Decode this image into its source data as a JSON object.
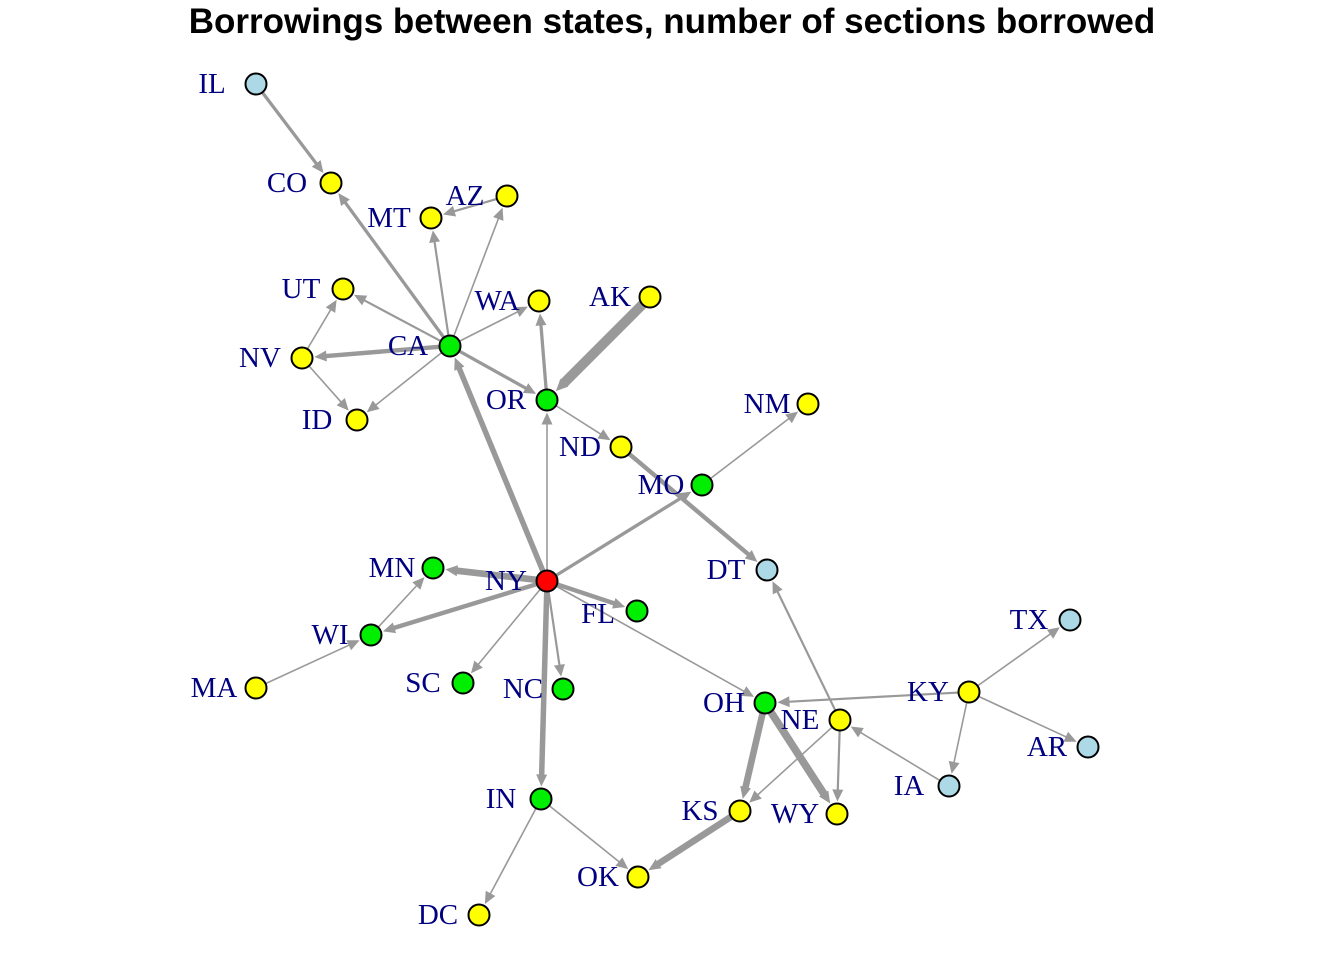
{
  "title": "Borrowings between states, number of sections borrowed",
  "colors": {
    "edge": "#999999",
    "label": "#000080",
    "groups": {
      "hub": "#ff0000",
      "green": "#00ee00",
      "yellow": "#ffff00",
      "blue": "#add8e6"
    }
  },
  "nodes": [
    {
      "id": "IL",
      "label": "IL",
      "group": "blue"
    },
    {
      "id": "CO",
      "label": "CO",
      "group": "yellow"
    },
    {
      "id": "MT",
      "label": "MT",
      "group": "yellow"
    },
    {
      "id": "AZ",
      "label": "AZ",
      "group": "yellow"
    },
    {
      "id": "UT",
      "label": "UT",
      "group": "yellow"
    },
    {
      "id": "WA",
      "label": "WA",
      "group": "yellow"
    },
    {
      "id": "AK",
      "label": "AK",
      "group": "yellow"
    },
    {
      "id": "NV",
      "label": "NV",
      "group": "yellow"
    },
    {
      "id": "CA",
      "label": "CA",
      "group": "green"
    },
    {
      "id": "OR",
      "label": "OR",
      "group": "green"
    },
    {
      "id": "ID",
      "label": "ID",
      "group": "yellow"
    },
    {
      "id": "NM",
      "label": "NM",
      "group": "yellow"
    },
    {
      "id": "ND",
      "label": "ND",
      "group": "yellow"
    },
    {
      "id": "MO",
      "label": "MO",
      "group": "green"
    },
    {
      "id": "MN",
      "label": "MN",
      "group": "green"
    },
    {
      "id": "NY",
      "label": "NY",
      "group": "hub"
    },
    {
      "id": "DT",
      "label": "DT",
      "group": "blue"
    },
    {
      "id": "FL",
      "label": "FL",
      "group": "green"
    },
    {
      "id": "TX",
      "label": "TX",
      "group": "blue"
    },
    {
      "id": "WI",
      "label": "WI",
      "group": "green"
    },
    {
      "id": "MA",
      "label": "MA",
      "group": "yellow"
    },
    {
      "id": "SC",
      "label": "SC",
      "group": "green"
    },
    {
      "id": "NC",
      "label": "NC",
      "group": "green"
    },
    {
      "id": "OH",
      "label": "OH",
      "group": "green"
    },
    {
      "id": "KY",
      "label": "KY",
      "group": "yellow"
    },
    {
      "id": "NE",
      "label": "NE",
      "group": "yellow"
    },
    {
      "id": "AR",
      "label": "AR",
      "group": "blue"
    },
    {
      "id": "IA",
      "label": "IA",
      "group": "blue"
    },
    {
      "id": "IN",
      "label": "IN",
      "group": "green"
    },
    {
      "id": "KS",
      "label": "KS",
      "group": "yellow"
    },
    {
      "id": "WY",
      "label": "WY",
      "group": "yellow"
    },
    {
      "id": "OK",
      "label": "OK",
      "group": "yellow"
    },
    {
      "id": "DC",
      "label": "DC",
      "group": "yellow"
    }
  ],
  "edges": [
    {
      "from": "IL",
      "to": "CO",
      "weight": 3
    },
    {
      "from": "CA",
      "to": "CO",
      "weight": 3
    },
    {
      "from": "CA",
      "to": "MT",
      "weight": 2
    },
    {
      "from": "AZ",
      "to": "MT",
      "weight": 2
    },
    {
      "from": "CA",
      "to": "AZ",
      "weight": 1
    },
    {
      "from": "CA",
      "to": "UT",
      "weight": 2
    },
    {
      "from": "NV",
      "to": "UT",
      "weight": 1
    },
    {
      "from": "CA",
      "to": "WA",
      "weight": 1
    },
    {
      "from": "OR",
      "to": "WA",
      "weight": 3
    },
    {
      "from": "CA",
      "to": "NV",
      "weight": 4
    },
    {
      "from": "NV",
      "to": "ID",
      "weight": 1
    },
    {
      "from": "CA",
      "to": "ID",
      "weight": 1
    },
    {
      "from": "CA",
      "to": "OR",
      "weight": 3
    },
    {
      "from": "AK",
      "to": "OR",
      "weight": 9
    },
    {
      "from": "NY",
      "to": "CA",
      "weight": 5
    },
    {
      "from": "NY",
      "to": "OR",
      "weight": 1
    },
    {
      "from": "OR",
      "to": "ND",
      "weight": 1
    },
    {
      "from": "ND",
      "to": "DT",
      "weight": 4
    },
    {
      "from": "MO",
      "to": "NM",
      "weight": 1
    },
    {
      "from": "NY",
      "to": "MO",
      "weight": 3
    },
    {
      "from": "NY",
      "to": "MN",
      "weight": 6
    },
    {
      "from": "NY",
      "to": "WI",
      "weight": 4
    },
    {
      "from": "WI",
      "to": "MN",
      "weight": 1
    },
    {
      "from": "MA",
      "to": "WI",
      "weight": 1
    },
    {
      "from": "NY",
      "to": "FL",
      "weight": 4
    },
    {
      "from": "NY",
      "to": "SC",
      "weight": 1
    },
    {
      "from": "NY",
      "to": "NC",
      "weight": 2
    },
    {
      "from": "NY",
      "to": "IN",
      "weight": 5
    },
    {
      "from": "NY",
      "to": "OH",
      "weight": 1
    },
    {
      "from": "NE",
      "to": "DT",
      "weight": 2
    },
    {
      "from": "KY",
      "to": "OH",
      "weight": 2
    },
    {
      "from": "KY",
      "to": "TX",
      "weight": 1
    },
    {
      "from": "KY",
      "to": "AR",
      "weight": 1
    },
    {
      "from": "KY",
      "to": "IA",
      "weight": 1
    },
    {
      "from": "IA",
      "to": "NE",
      "weight": 1
    },
    {
      "from": "NE",
      "to": "KS",
      "weight": 1
    },
    {
      "from": "NE",
      "to": "WY",
      "weight": 2
    },
    {
      "from": "OH",
      "to": "KS",
      "weight": 6
    },
    {
      "from": "OH",
      "to": "WY",
      "weight": 7
    },
    {
      "from": "KS",
      "to": "OK",
      "weight": 6
    },
    {
      "from": "IN",
      "to": "OK",
      "weight": 1
    },
    {
      "from": "IN",
      "to": "DC",
      "weight": 1
    }
  ]
}
